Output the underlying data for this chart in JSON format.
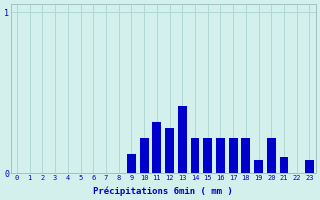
{
  "title": "",
  "xlabel": "Précipitations 6min ( mm )",
  "ylabel": "",
  "background_color": "#d4f0ec",
  "bar_color": "#0000cc",
  "grid_color": "#b0d8d4",
  "axis_color": "#99bbbb",
  "text_color": "#0000cc",
  "xlim": [
    -0.5,
    23.5
  ],
  "ylim": [
    0,
    1.05
  ],
  "yticks": [
    0,
    1
  ],
  "xticks": [
    0,
    1,
    2,
    3,
    4,
    5,
    6,
    7,
    8,
    9,
    10,
    11,
    12,
    13,
    14,
    15,
    16,
    17,
    18,
    19,
    20,
    21,
    22,
    23
  ],
  "values": [
    0,
    0,
    0,
    0,
    0,
    0,
    0,
    0,
    0,
    0.12,
    0.22,
    0.32,
    0.28,
    0.42,
    0.22,
    0.22,
    0.22,
    0.22,
    0.22,
    0.08,
    0.22,
    0.1,
    0.0,
    0.08
  ],
  "bar_width": 0.7,
  "figsize": [
    3.2,
    2.0
  ],
  "dpi": 100
}
